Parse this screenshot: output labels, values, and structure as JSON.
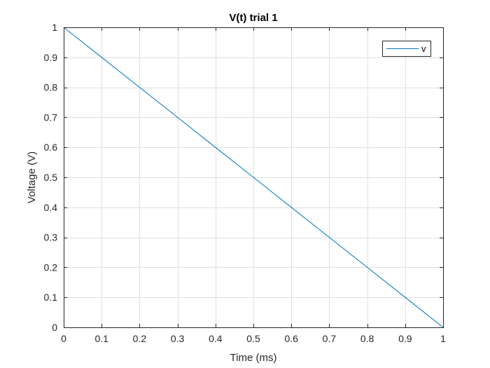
{
  "chart_data": {
    "type": "line",
    "title": "V(t) trial 1",
    "xlabel": "Time (ms)",
    "ylabel": "Voltage (V)",
    "xlim": [
      0,
      1
    ],
    "ylim": [
      0,
      1
    ],
    "xticks": [
      "0",
      "0.1",
      "0.2",
      "0.3",
      "0.4",
      "0.5",
      "0.6",
      "0.7",
      "0.8",
      "0.9",
      "1"
    ],
    "yticks": [
      "0",
      "0.1",
      "0.2",
      "0.3",
      "0.4",
      "0.5",
      "0.6",
      "0.7",
      "0.8",
      "0.9",
      "1"
    ],
    "grid": true,
    "legend_position": "top-right",
    "series": [
      {
        "name": "v",
        "color": "#0072bd",
        "x": [
          0,
          0.1,
          0.2,
          0.3,
          0.4,
          0.5,
          0.6,
          0.7,
          0.8,
          0.9,
          1
        ],
        "y": [
          1,
          0.9,
          0.8,
          0.7,
          0.6,
          0.5,
          0.4,
          0.3,
          0.2,
          0.1,
          0
        ]
      }
    ]
  }
}
